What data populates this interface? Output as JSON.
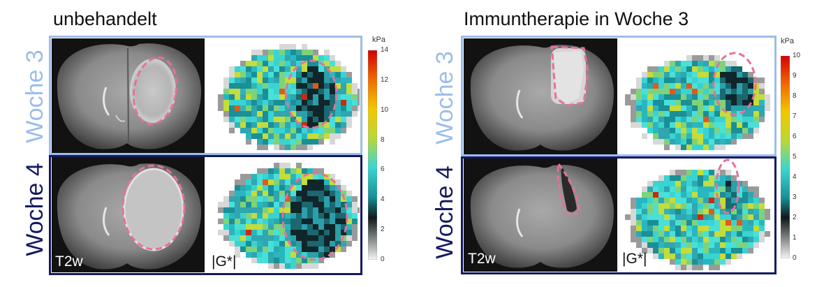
{
  "left_panel": {
    "title": "unbehandelt",
    "row1_label": "Woche 3",
    "row2_label": "Woche 4",
    "t2w_label": "T2w",
    "g_label": "|G*|"
  },
  "right_panel": {
    "title": "Immuntherapie in Woche 3",
    "row1_label": "Woche 3",
    "row2_label": "Woche 4",
    "t2w_label": "T2w",
    "g_label": "|G*|"
  },
  "colorbar_left": {
    "unit": "kPa",
    "ticks": [
      "14",
      "12",
      "10",
      "8",
      "6",
      "4",
      "2",
      "0"
    ]
  },
  "colorbar_right": {
    "unit": "kPa",
    "ticks": [
      "10",
      "9",
      "8",
      "7",
      "6",
      "5",
      "4",
      "3",
      "2",
      "1",
      "0"
    ]
  },
  "colors": {
    "week3": "#9dbde8",
    "week4": "#141a5e",
    "tumor_outline": "#e8709a"
  }
}
